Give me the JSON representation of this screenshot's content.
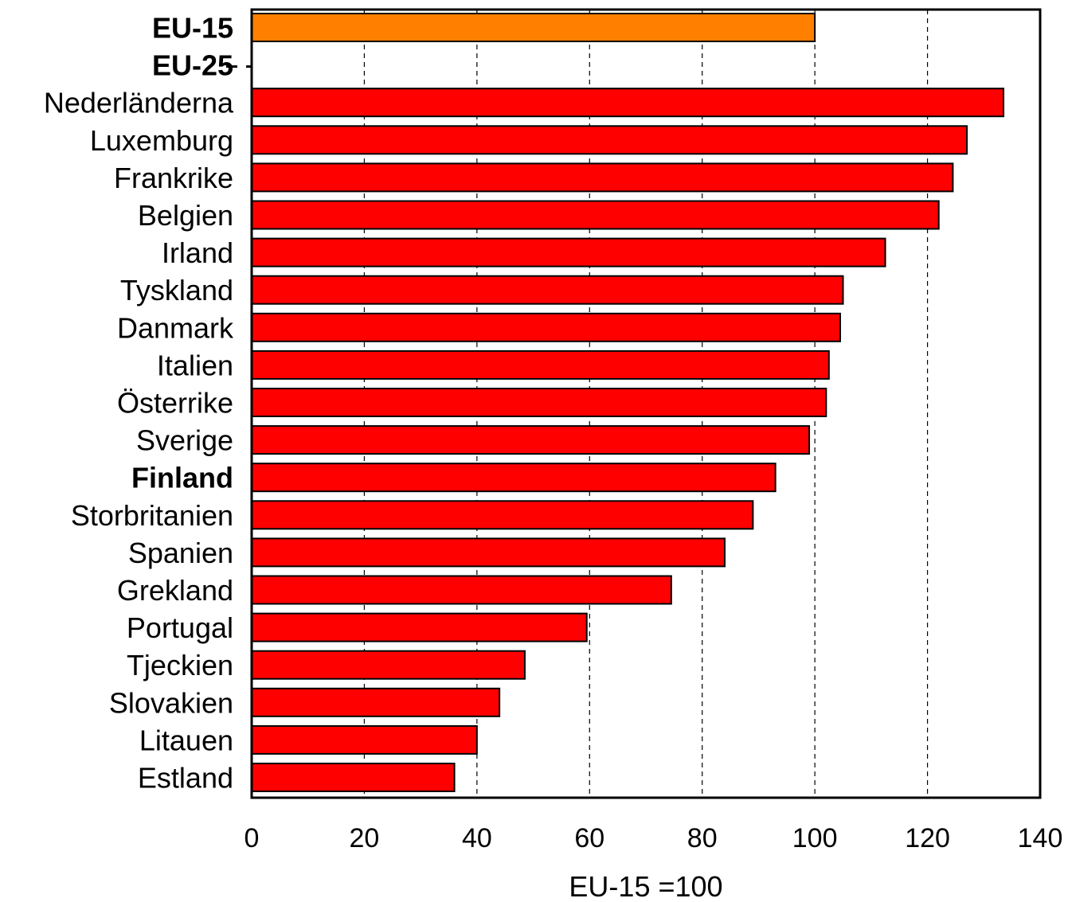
{
  "chart_data": {
    "type": "bar",
    "orientation": "horizontal",
    "categories": [
      "EU-15",
      "EU-25",
      "Nederländerna",
      "Luxemburg",
      "Frankrike",
      "Belgien",
      "Irland",
      "Tyskland",
      "Danmark",
      "Italien",
      "Österrike",
      "Sverige",
      "Finland",
      "Storbritanien",
      "Spanien",
      "Grekland",
      "Portugal",
      "Tjeckien",
      "Slovakien",
      "Litauen",
      "Estland"
    ],
    "values": [
      100,
      null,
      133.5,
      127,
      124.5,
      122,
      112.5,
      105,
      104.5,
      102.5,
      102,
      99,
      93,
      89,
      84,
      74.5,
      59.5,
      48.5,
      44,
      40,
      36
    ],
    "bold_categories": [
      "EU-15",
      "EU-25",
      "Finland"
    ],
    "bar_colors": {
      "highlight": "#FF8000",
      "default": "#FF0000"
    },
    "highlight_category": "EU-15",
    "xlabel": "EU-15 =100",
    "ylabel": "",
    "title": "",
    "xlim": [
      0,
      140
    ],
    "xticks": [
      "0",
      "20",
      "40",
      "60",
      "80",
      "100",
      "120",
      "140"
    ],
    "grid": "vertical dashed"
  }
}
